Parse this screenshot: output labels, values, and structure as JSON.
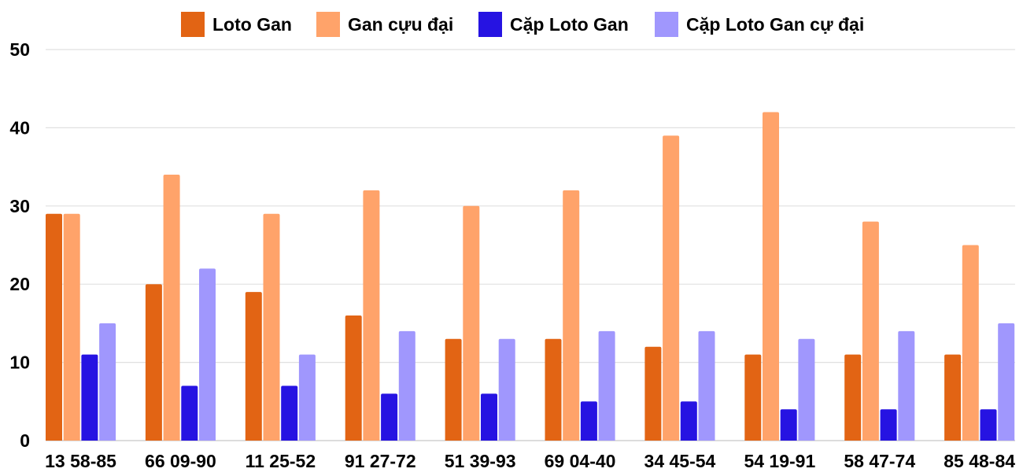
{
  "chart_data": {
    "type": "bar",
    "title": "",
    "xlabel": "",
    "ylabel": "",
    "ylim": [
      0,
      50
    ],
    "yticks": [
      "0",
      "10",
      "20",
      "30",
      "40",
      "50"
    ],
    "grid": true,
    "legend_position": "top",
    "categories": [
      "13 58-85",
      "66 09-90",
      "11 25-52",
      "91 27-72",
      "51 39-93",
      "69 04-40",
      "34 45-54",
      "54 19-91",
      "58 47-74",
      "85 48-84"
    ],
    "series": [
      {
        "name": "Loto Gan",
        "color": "#e26414",
        "values": [
          29,
          20,
          19,
          16,
          13,
          13,
          12,
          11,
          11,
          11
        ]
      },
      {
        "name": "Gan cựu đại",
        "color": "#ffa36a",
        "values": [
          29,
          34,
          29,
          32,
          30,
          32,
          39,
          42,
          28,
          25
        ]
      },
      {
        "name": "Cặp Loto Gan",
        "color": "#2613e2",
        "values": [
          11,
          7,
          7,
          6,
          6,
          5,
          5,
          4,
          4,
          4
        ]
      },
      {
        "name": "Cặp Loto Gan cự đại",
        "color": "#a097fd",
        "values": [
          15,
          22,
          11,
          14,
          13,
          14,
          14,
          13,
          14,
          15
        ]
      }
    ]
  }
}
